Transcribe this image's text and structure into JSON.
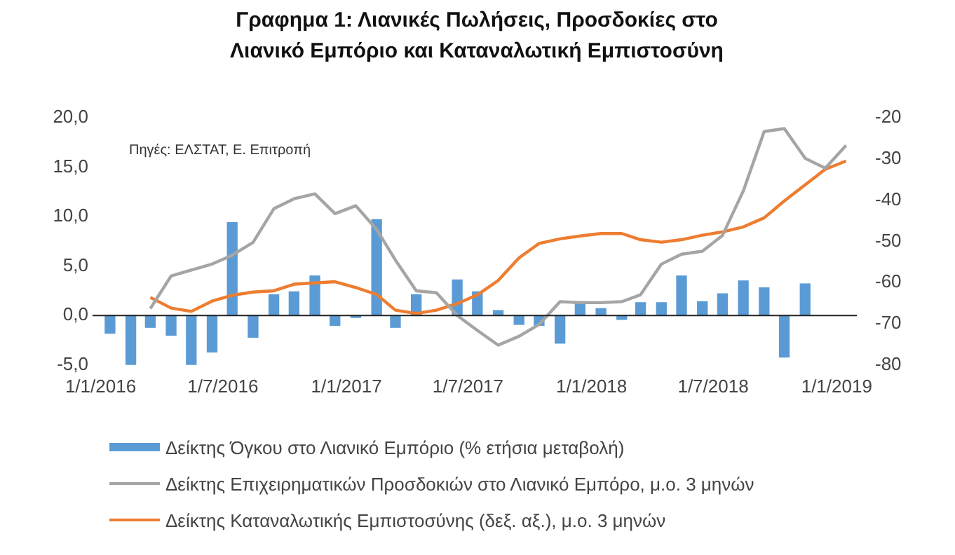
{
  "chart_data": {
    "type": "bar",
    "title": "Γραφημα 1: Λιανικές Πωλήσεις, Προσδοκίες στο Λιανικό Εμπόριο και Καταναλωτική Εμπιστοσύνη",
    "annotations": [
      "Πηγές: ΕΛΣΤΑΤ, Ε. Επιτροπή"
    ],
    "x": [
      "2016-01-15",
      "2016-02-15",
      "2016-03-15",
      "2016-04-15",
      "2016-05-15",
      "2016-06-15",
      "2016-07-15",
      "2016-08-15",
      "2016-09-15",
      "2016-10-15",
      "2016-11-15",
      "2016-12-15",
      "2017-01-15",
      "2017-02-15",
      "2017-03-15",
      "2017-04-15",
      "2017-05-15",
      "2017-06-15",
      "2017-07-15",
      "2017-08-15",
      "2017-09-15",
      "2017-10-15",
      "2017-11-15",
      "2017-12-15",
      "2018-01-15",
      "2018-02-15",
      "2018-03-15",
      "2018-04-15",
      "2018-05-15",
      "2018-06-15",
      "2018-07-15",
      "2018-08-15",
      "2018-09-15",
      "2018-10-15",
      "2018-11-15",
      "2018-12-15",
      "2019-01-15"
    ],
    "series": [
      {
        "name": "Δείκτης Όγκου στο Λιανικό Εμπόριο (% ετήσια μεταβολή)",
        "color": "#5b9bd5",
        "values": [
          -1.8,
          -5.0,
          -1.2,
          -2.0,
          -5.0,
          -3.7,
          9.4,
          -2.2,
          2.1,
          2.4,
          4.0,
          -1.0,
          -0.2,
          9.7,
          -1.2,
          2.1,
          null,
          3.6,
          2.4,
          0.5,
          -0.9,
          -1.0,
          -2.8,
          1.4,
          0.7,
          -0.4,
          1.3,
          1.3,
          4.0,
          1.4,
          2.2,
          3.5,
          2.8,
          -4.2,
          3.2,
          null,
          null
        ]
      },
      {
        "name": "Δείκτης Επιχειρηματικών Προσδοκιών στο Λιανικό Εμπόρο, μ.ο. 3 μηνών",
        "type": "line",
        "color": "#a5a5a5",
        "values": [
          null,
          null,
          0.7,
          4.0,
          4.6,
          5.2,
          6.1,
          7.4,
          10.8,
          11.8,
          12.3,
          10.3,
          11.1,
          8.7,
          5.6,
          2.5,
          2.3,
          0.0,
          -1.5,
          -3.0,
          -2.1,
          -0.9,
          1.4,
          1.3,
          1.3,
          1.4,
          2.1,
          5.2,
          6.2,
          6.5,
          8.1,
          12.6,
          18.6,
          18.9,
          15.9,
          14.9,
          17.2
        ]
      },
      {
        "name": "Δείκτης Καταναλωτικής Εμπιστοσύνης (δεξ. αξ.), μ.ο. 3 μηνών",
        "type": "line",
        "axis": "y2",
        "color": "#ed7d31",
        "values": [
          null,
          null,
          -63.6,
          -66.2,
          -67.0,
          -64.5,
          -63.1,
          -62.3,
          -62.0,
          -60.4,
          -60.1,
          -59.8,
          -61.2,
          -62.9,
          -66.7,
          -67.5,
          -66.7,
          -65.1,
          -63.0,
          -59.5,
          -54.0,
          -50.5,
          -49.4,
          -48.7,
          -48.1,
          -48.1,
          -49.6,
          -50.2,
          -49.6,
          -48.5,
          -47.7,
          -46.5,
          -44.3,
          -40.2,
          -36.3,
          -32.5,
          -30.5
        ]
      }
    ],
    "xlim": [
      "2015-12-20",
      "2019-01-31"
    ],
    "xticks": [
      {
        "value": "2016-01-01",
        "label": "1/1/2016"
      },
      {
        "value": "2016-07-01",
        "label": "1/7/2016"
      },
      {
        "value": "2017-01-01",
        "label": "1/1/2017"
      },
      {
        "value": "2017-07-01",
        "label": "1/7/2017"
      },
      {
        "value": "2018-01-01",
        "label": "1/1/2018"
      },
      {
        "value": "2018-07-01",
        "label": "1/7/2018"
      },
      {
        "value": "2019-01-01",
        "label": "1/1/2019"
      }
    ],
    "ylim": [
      -5,
      20
    ],
    "yticks": [
      {
        "value": -5,
        "label": "-5,0"
      },
      {
        "value": 0,
        "label": "0,0"
      },
      {
        "value": 5,
        "label": "5,0"
      },
      {
        "value": 10,
        "label": "10,0"
      },
      {
        "value": 15,
        "label": "15,0"
      },
      {
        "value": 20,
        "label": "20,0"
      }
    ],
    "y2lim": [
      -80,
      -20
    ],
    "y2ticks": [
      -80,
      -70,
      -60,
      -50,
      -40,
      -30,
      -20
    ],
    "legend": "bottom",
    "marker": "none",
    "line_style": "solid"
  }
}
